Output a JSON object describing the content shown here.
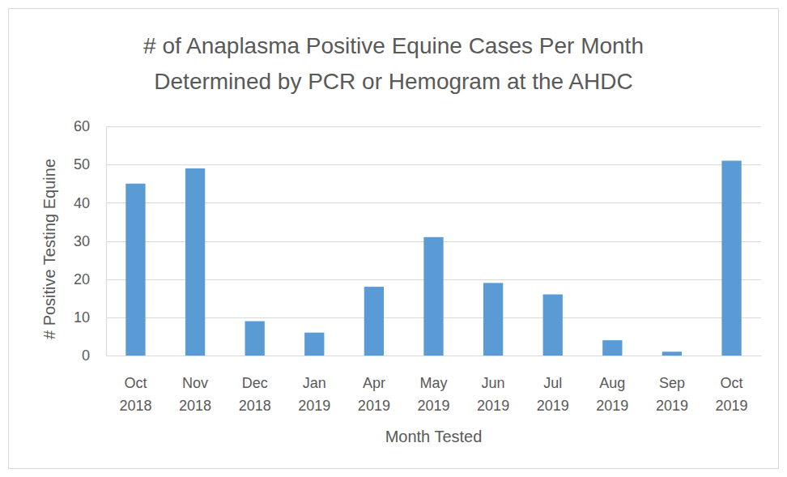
{
  "chart_data": {
    "type": "bar",
    "title": [
      "# of Anaplasma Positive Equine Cases Per Month",
      "Determined by PCR or Hemogram at the AHDC"
    ],
    "x_label": "Month Tested",
    "y_label": "# Positive Testing Equine",
    "categories": [
      "Oct 2018",
      "Nov 2018",
      "Dec 2018",
      "Jan 2019",
      "Apr 2019",
      "May 2019",
      "Jun 2019",
      "Jul 2019",
      "Aug 2019",
      "Sep 2019",
      "Oct 2019"
    ],
    "values": [
      45,
      49,
      9,
      6,
      18,
      31,
      19,
      16,
      4,
      1,
      51
    ],
    "color": "#5b9bd5",
    "ylim": [
      0,
      60
    ],
    "yticks": [
      0,
      10,
      20,
      30,
      40,
      50,
      60
    ],
    "grid": true
  }
}
